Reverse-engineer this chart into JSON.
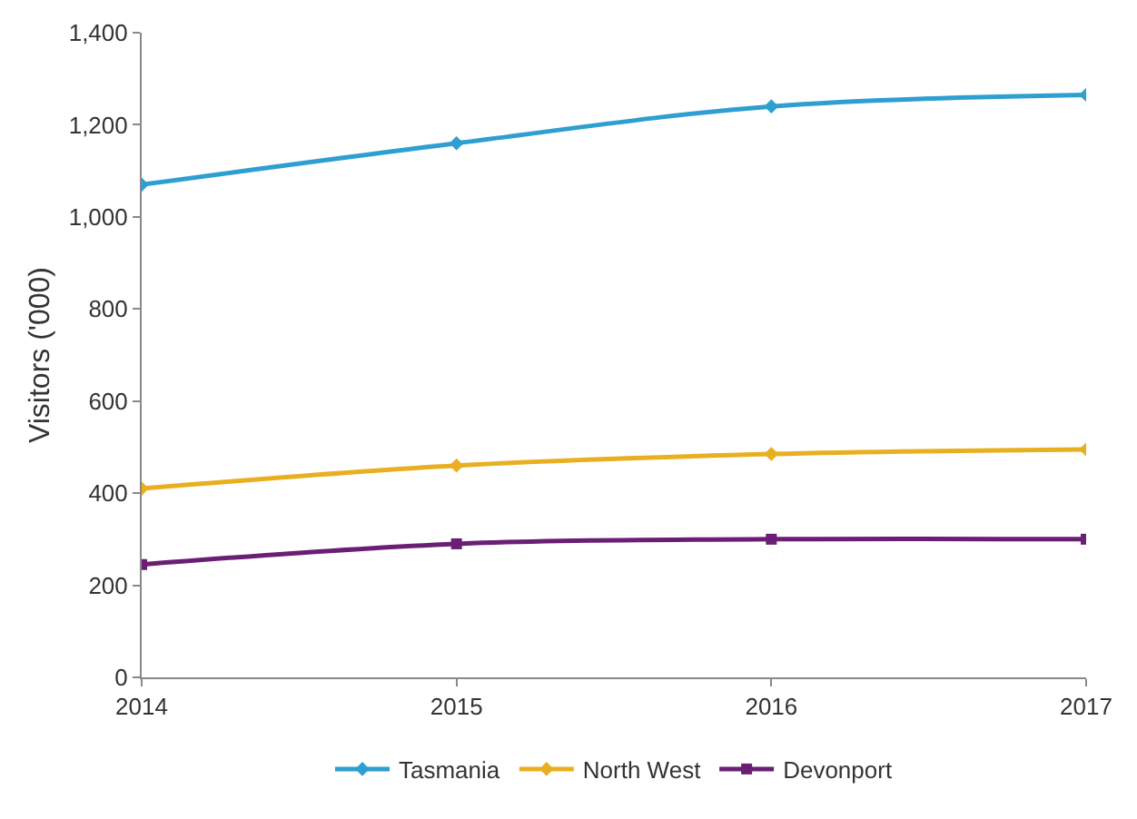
{
  "chart_data": {
    "type": "line",
    "ylabel": "Visitors ('000)",
    "x": [
      2014,
      2015,
      2016,
      2017
    ],
    "series": [
      {
        "name": "Tasmania",
        "color": "#2e9fd0",
        "marker": "diamond",
        "values": [
          1070,
          1160,
          1240,
          1265
        ]
      },
      {
        "name": "North West",
        "color": "#e8b020",
        "marker": "diamond",
        "values": [
          410,
          460,
          485,
          495
        ]
      },
      {
        "name": "Devonport",
        "color": "#6a1e74",
        "marker": "square",
        "values": [
          245,
          290,
          300,
          300
        ]
      }
    ],
    "xlim": [
      2014,
      2017
    ],
    "xticks": [
      2014,
      2015,
      2016,
      2017
    ],
    "ylim": [
      0,
      1400
    ],
    "yticks": [
      0,
      {
        "value": 200,
        "label": "200"
      },
      {
        "value": 400,
        "label": "400"
      },
      {
        "value": 600,
        "label": "600"
      },
      {
        "value": 800,
        "label": "800"
      },
      {
        "value": 1000,
        "label": "1,000"
      },
      {
        "value": 1200,
        "label": "1,200"
      },
      {
        "value": 1400,
        "label": "1,400"
      }
    ],
    "legend": "bottom"
  }
}
